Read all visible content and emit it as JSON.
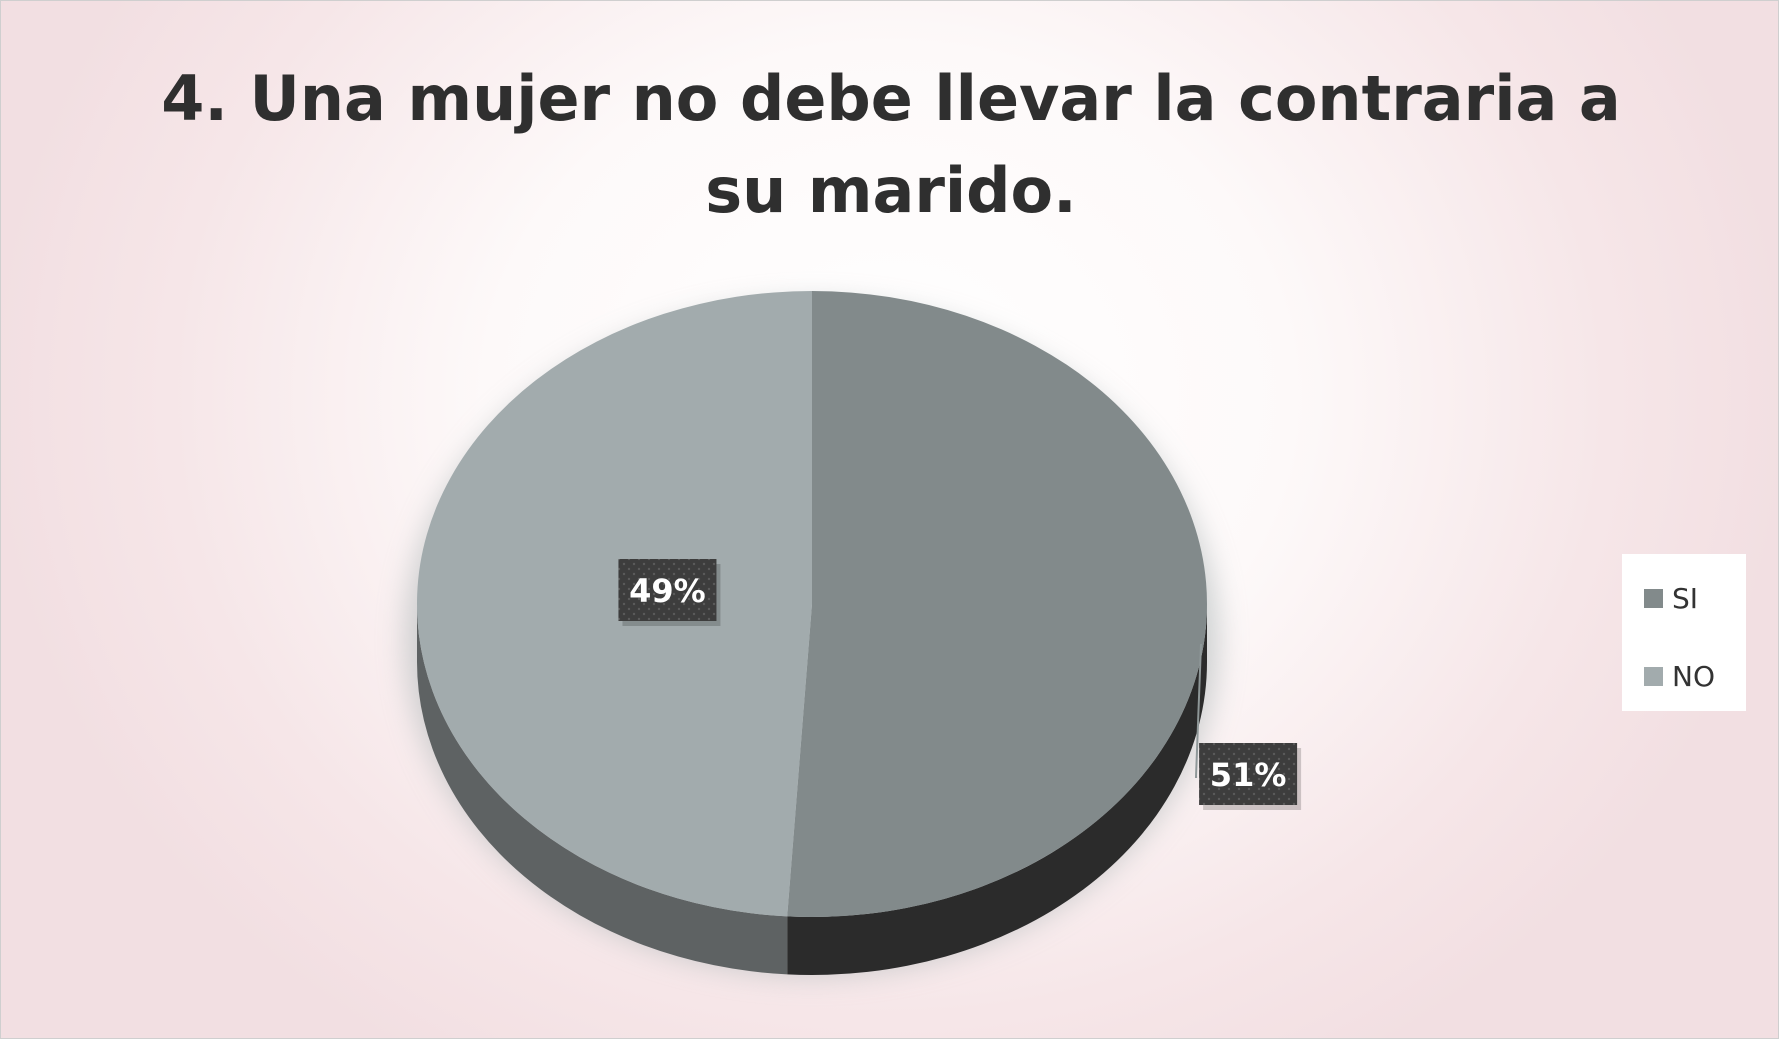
{
  "chart_data": {
    "type": "pie",
    "title": "4. Una mujer no debe llevar la contraria a su marido.",
    "categories": [
      "SI",
      "NO"
    ],
    "values": [
      51,
      49
    ],
    "labels": [
      "51%",
      "49%"
    ],
    "colors": {
      "SI": "#828a8b",
      "NO": "#a2abad",
      "SI_side": "#2b2b2b",
      "NO_side": "#5e6263",
      "label_bg": "#3d3d3d",
      "label_text": "#ffffff"
    },
    "legend": "right",
    "style": "3d"
  }
}
